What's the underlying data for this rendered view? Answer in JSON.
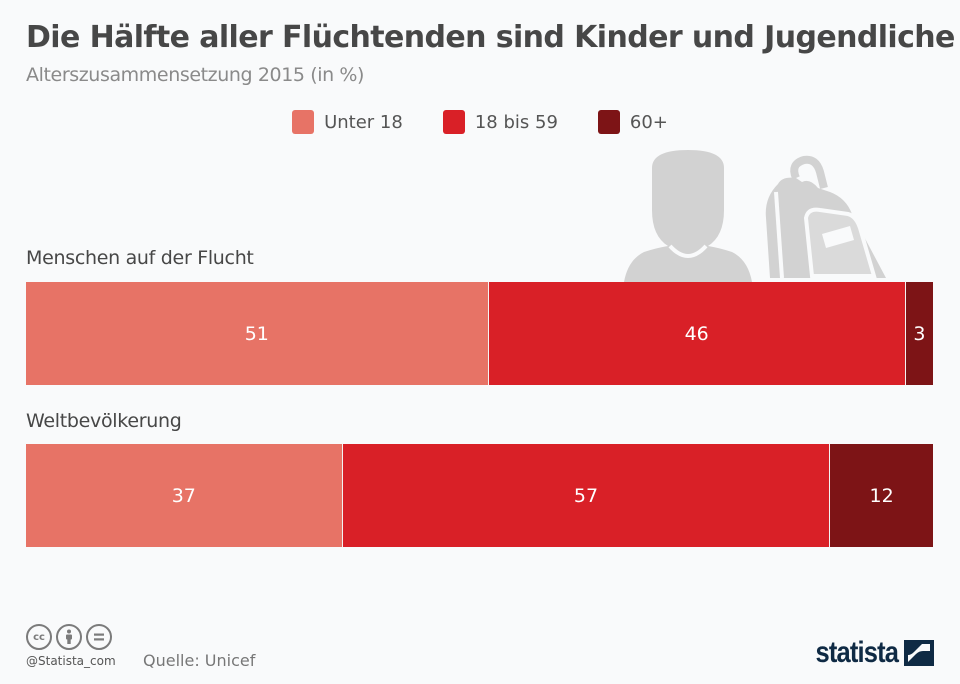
{
  "header": {
    "title": "Die Hälfte aller Flüchtenden sind Kinder und Jugendliche",
    "subtitle": "Alterszusammensetzung 2015 (in %)"
  },
  "legend": [
    {
      "label": "Unter 18",
      "color": "#e77366"
    },
    {
      "label": "18 bis 59",
      "color": "#d92027"
    },
    {
      "label": "60+",
      "color": "#7d1416"
    }
  ],
  "chart_data": {
    "type": "bar",
    "orientation": "horizontal",
    "stacked": true,
    "title": "Die Hälfte aller Flüchtenden sind Kinder und Jugendliche",
    "subtitle": "Alterszusammensetzung 2015 (in %)",
    "categories": [
      "Menschen auf der Flucht",
      "Weltbevölkerung"
    ],
    "series": [
      {
        "name": "Unter 18",
        "color": "#e77366",
        "values": [
          51,
          37
        ]
      },
      {
        "name": "18 bis 59",
        "color": "#d92027",
        "values": [
          46,
          57
        ]
      },
      {
        "name": "60+",
        "color": "#7d1416",
        "values": [
          3,
          12
        ]
      }
    ],
    "xlabel": "",
    "ylabel": "",
    "unit": "%",
    "legend_position": "top-center",
    "grid": false,
    "data_labels": true
  },
  "footer": {
    "license_icons": [
      "cc-icon",
      "attribution-icon",
      "no-derivatives-icon"
    ],
    "cc_text": "cc",
    "handle": "@Statista_com",
    "source": "Quelle: Unicef",
    "brand": "statista"
  }
}
